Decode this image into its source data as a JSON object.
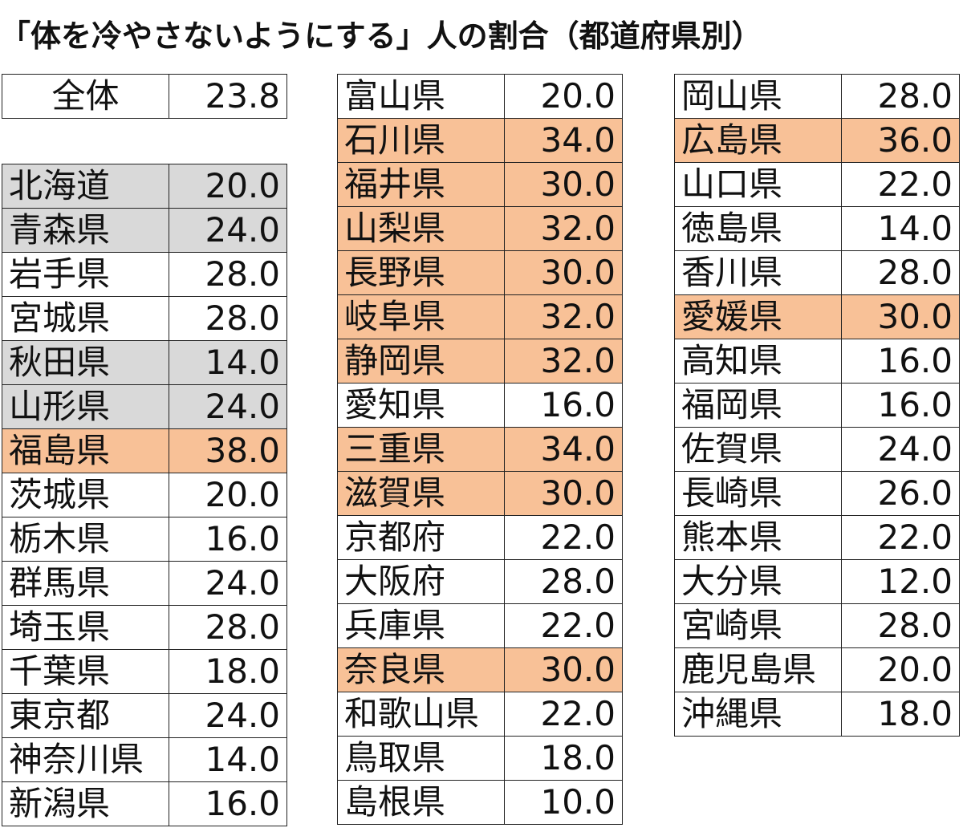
{
  "title": "「体を冷やさないようにする」人の割合（都道府県別）",
  "colors": {
    "orange": "#f8c197",
    "gray": "#d9d9d9"
  },
  "total": {
    "name": "全体",
    "value": "23.8"
  },
  "columns": [
    [
      {
        "name": "北海道",
        "value": "20.0",
        "hl": "gray"
      },
      {
        "name": "青森県",
        "value": "24.0",
        "hl": "gray"
      },
      {
        "name": "岩手県",
        "value": "28.0",
        "hl": ""
      },
      {
        "name": "宮城県",
        "value": "28.0",
        "hl": ""
      },
      {
        "name": "秋田県",
        "value": "14.0",
        "hl": "gray"
      },
      {
        "name": "山形県",
        "value": "24.0",
        "hl": "gray"
      },
      {
        "name": "福島県",
        "value": "38.0",
        "hl": "orange"
      },
      {
        "name": "茨城県",
        "value": "20.0",
        "hl": ""
      },
      {
        "name": "栃木県",
        "value": "16.0",
        "hl": ""
      },
      {
        "name": "群馬県",
        "value": "24.0",
        "hl": ""
      },
      {
        "name": "埼玉県",
        "value": "28.0",
        "hl": ""
      },
      {
        "name": "千葉県",
        "value": "18.0",
        "hl": ""
      },
      {
        "name": "東京都",
        "value": "24.0",
        "hl": ""
      },
      {
        "name": "神奈川県",
        "value": "14.0",
        "hl": ""
      },
      {
        "name": "新潟県",
        "value": "16.0",
        "hl": ""
      }
    ],
    [
      {
        "name": "富山県",
        "value": "20.0",
        "hl": ""
      },
      {
        "name": "石川県",
        "value": "34.0",
        "hl": "orange"
      },
      {
        "name": "福井県",
        "value": "30.0",
        "hl": "orange"
      },
      {
        "name": "山梨県",
        "value": "32.0",
        "hl": "orange"
      },
      {
        "name": "長野県",
        "value": "30.0",
        "hl": "orange"
      },
      {
        "name": "岐阜県",
        "value": "32.0",
        "hl": "orange"
      },
      {
        "name": "静岡県",
        "value": "32.0",
        "hl": "orange"
      },
      {
        "name": "愛知県",
        "value": "16.0",
        "hl": ""
      },
      {
        "name": "三重県",
        "value": "34.0",
        "hl": "orange"
      },
      {
        "name": "滋賀県",
        "value": "30.0",
        "hl": "orange"
      },
      {
        "name": "京都府",
        "value": "22.0",
        "hl": ""
      },
      {
        "name": "大阪府",
        "value": "28.0",
        "hl": ""
      },
      {
        "name": "兵庫県",
        "value": "22.0",
        "hl": ""
      },
      {
        "name": "奈良県",
        "value": "30.0",
        "hl": "orange"
      },
      {
        "name": "和歌山県",
        "value": "22.0",
        "hl": ""
      },
      {
        "name": "鳥取県",
        "value": "18.0",
        "hl": ""
      },
      {
        "name": "島根県",
        "value": "10.0",
        "hl": ""
      }
    ],
    [
      {
        "name": "岡山県",
        "value": "28.0",
        "hl": ""
      },
      {
        "name": "広島県",
        "value": "36.0",
        "hl": "orange"
      },
      {
        "name": "山口県",
        "value": "22.0",
        "hl": ""
      },
      {
        "name": "徳島県",
        "value": "14.0",
        "hl": ""
      },
      {
        "name": "香川県",
        "value": "28.0",
        "hl": ""
      },
      {
        "name": "愛媛県",
        "value": "30.0",
        "hl": "orange"
      },
      {
        "name": "高知県",
        "value": "16.0",
        "hl": ""
      },
      {
        "name": "福岡県",
        "value": "16.0",
        "hl": ""
      },
      {
        "name": "佐賀県",
        "value": "24.0",
        "hl": ""
      },
      {
        "name": "長崎県",
        "value": "26.0",
        "hl": ""
      },
      {
        "name": "熊本県",
        "value": "22.0",
        "hl": ""
      },
      {
        "name": "大分県",
        "value": "12.0",
        "hl": ""
      },
      {
        "name": "宮崎県",
        "value": "28.0",
        "hl": ""
      },
      {
        "name": "鹿児島県",
        "value": "20.0",
        "hl": ""
      },
      {
        "name": "沖縄県",
        "value": "18.0",
        "hl": ""
      }
    ]
  ]
}
